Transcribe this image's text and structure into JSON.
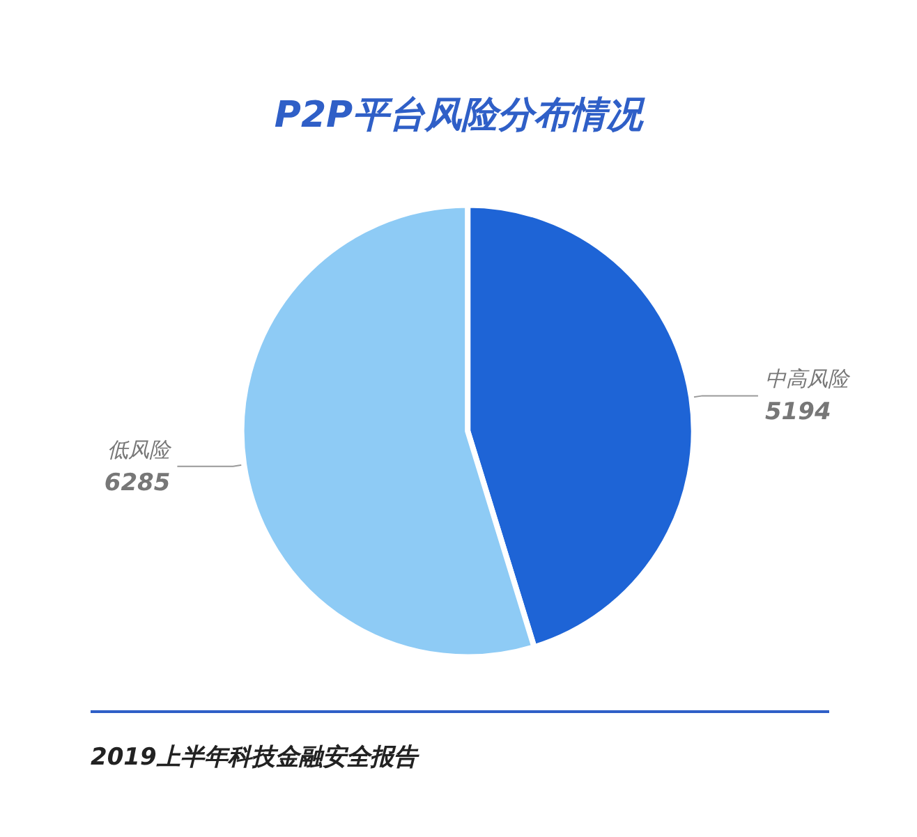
{
  "chart_data": {
    "type": "pie",
    "title": "P2P平台风险分布情况",
    "categories": [
      "中高风险",
      "低风险"
    ],
    "values": [
      5194,
      6285
    ],
    "colors": [
      "#1e64d6",
      "#8ecbf5"
    ],
    "data_labels": true,
    "annotations": [
      "2019上半年科技金融安全报告"
    ]
  }
}
